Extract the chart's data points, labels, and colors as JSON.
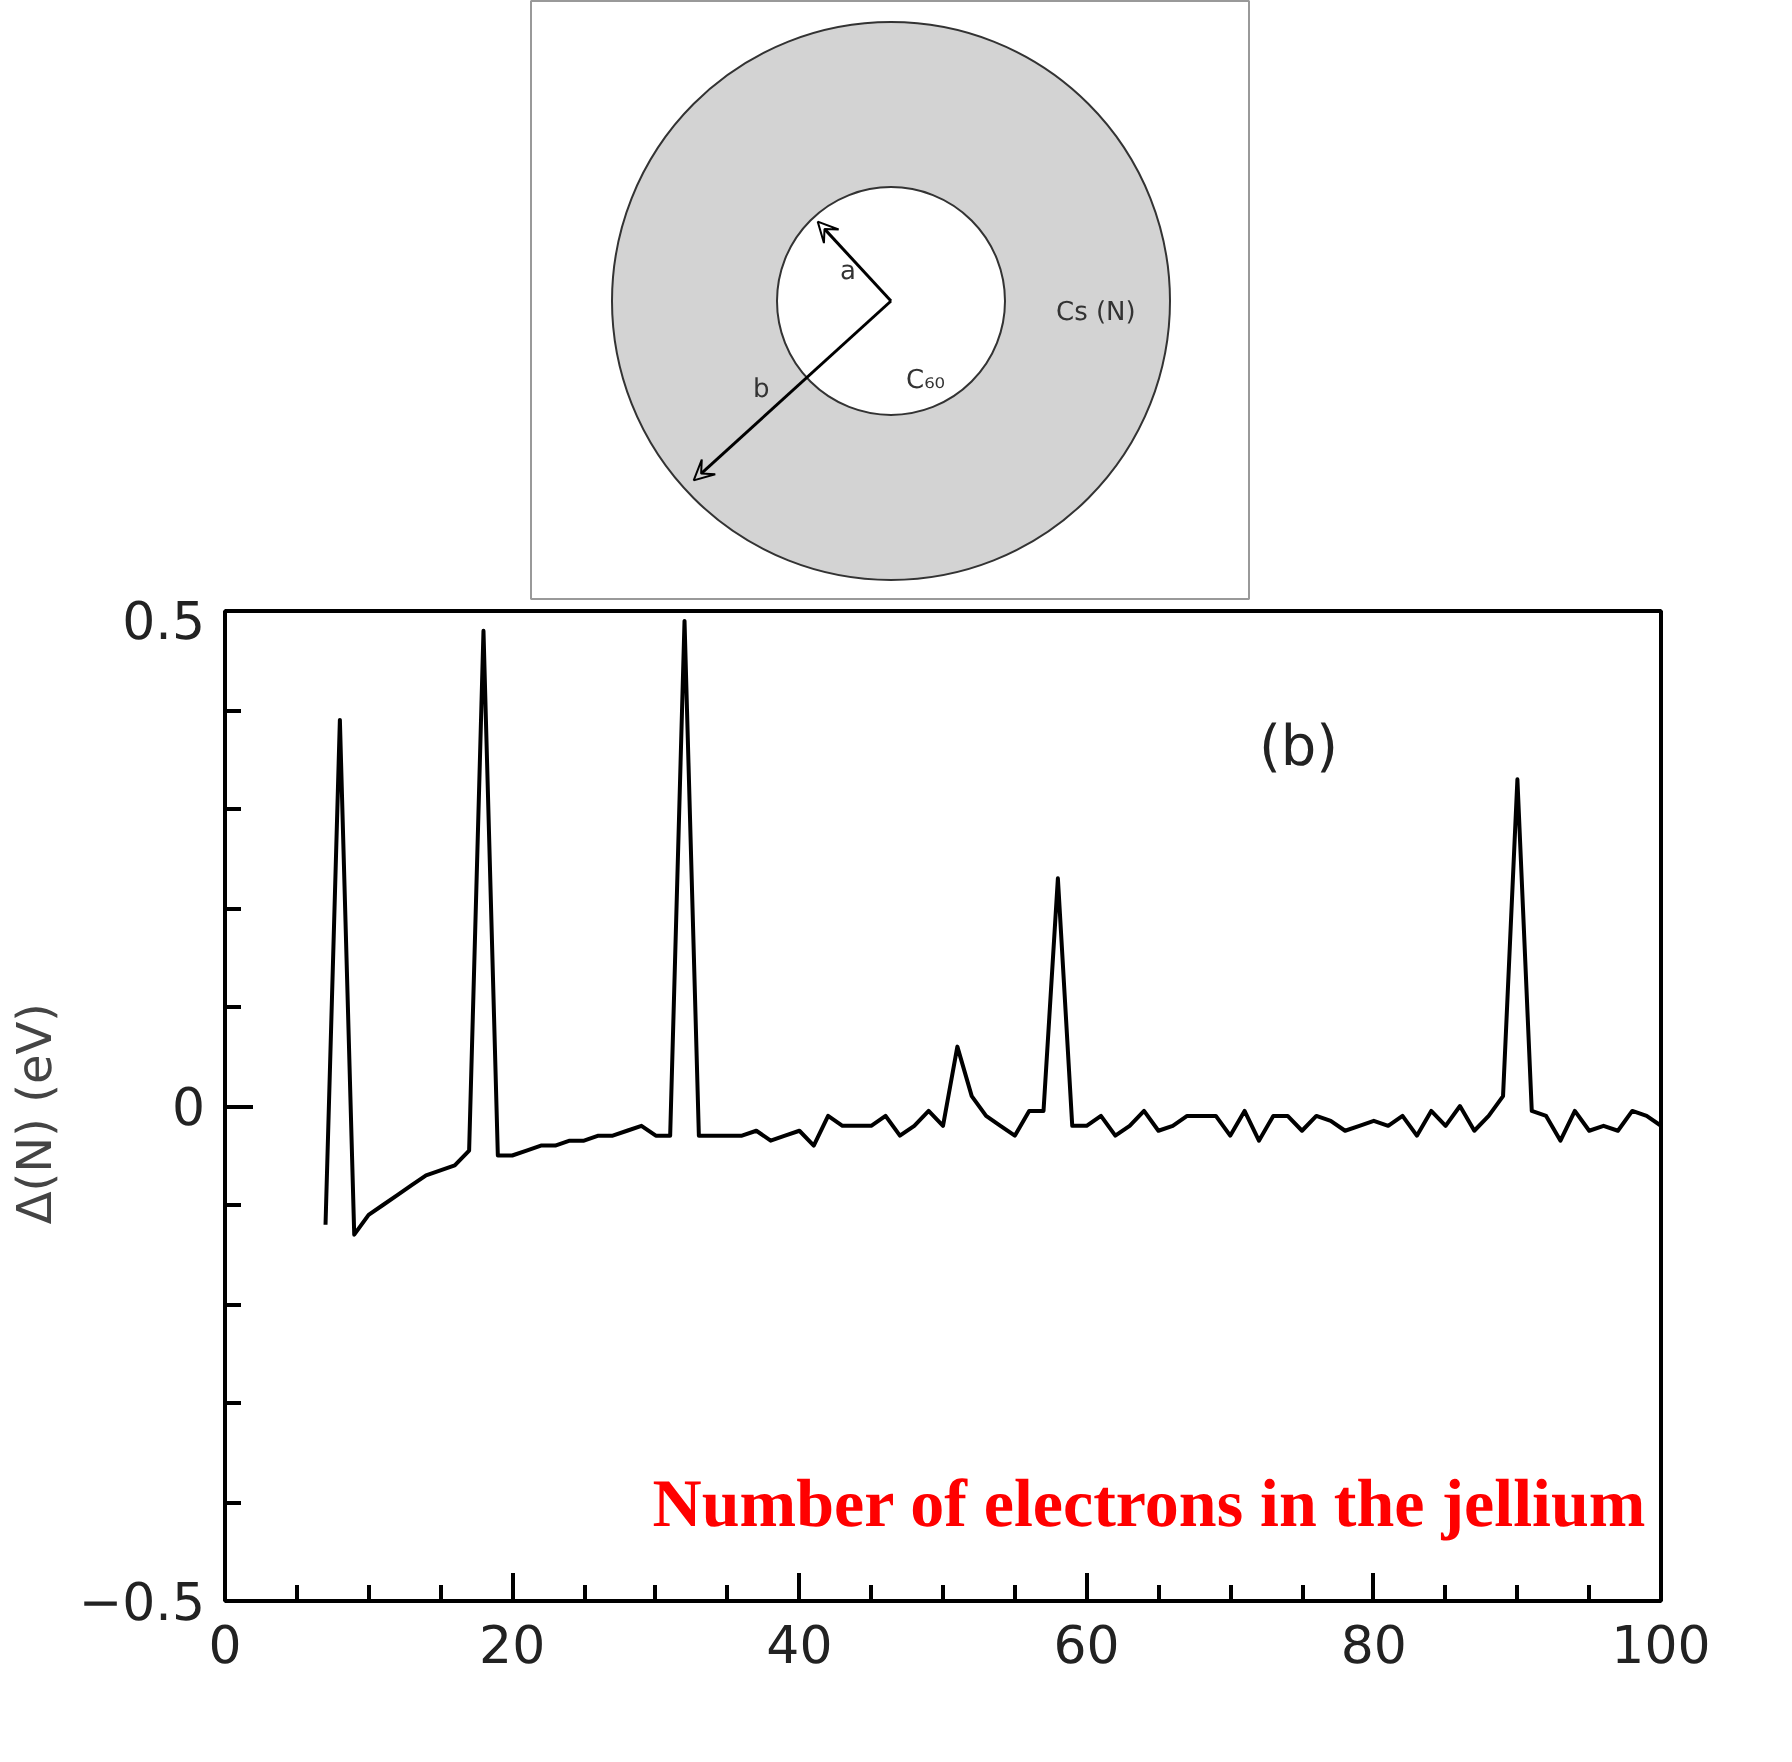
{
  "chart_data": {
    "type": "line",
    "xlabel": "Number of electrons in the jellium",
    "ylabel": "Δ(N)  (eV)",
    "annotations": [
      "(b)",
      "a",
      "b",
      "C₆₀",
      "Cs (N)"
    ],
    "x": [
      7,
      8,
      9,
      10,
      11,
      12,
      13,
      14,
      15,
      16,
      17,
      18,
      19,
      20,
      21,
      22,
      23,
      24,
      25,
      26,
      27,
      28,
      29,
      30,
      31,
      32,
      33,
      34,
      35,
      36,
      37,
      38,
      39,
      40,
      41,
      42,
      43,
      44,
      45,
      46,
      47,
      48,
      49,
      50,
      51,
      52,
      53,
      54,
      55,
      56,
      57,
      58,
      59,
      60,
      61,
      62,
      63,
      64,
      65,
      66,
      67,
      68,
      69,
      70,
      71,
      72,
      73,
      74,
      75,
      76,
      77,
      78,
      79,
      80,
      81,
      82,
      83,
      84,
      85,
      86,
      87,
      88,
      89,
      90,
      91,
      92,
      93,
      94,
      95,
      96,
      97,
      98,
      99,
      100
    ],
    "series": [
      {
        "color": "#000000",
        "values": [
          -0.12,
          0.39,
          -0.13,
          -0.11,
          -0.1,
          -0.09,
          -0.08,
          -0.07,
          -0.065,
          -0.06,
          -0.045,
          0.48,
          -0.05,
          -0.05,
          -0.045,
          -0.04,
          -0.04,
          -0.035,
          -0.035,
          -0.03,
          -0.03,
          -0.025,
          -0.02,
          -0.03,
          -0.03,
          0.49,
          -0.03,
          -0.03,
          -0.03,
          -0.03,
          -0.025,
          -0.035,
          -0.03,
          -0.025,
          -0.04,
          -0.01,
          -0.02,
          -0.02,
          -0.02,
          -0.01,
          -0.03,
          -0.02,
          -0.005,
          -0.02,
          0.06,
          0.01,
          -0.01,
          -0.02,
          -0.03,
          -0.005,
          -0.005,
          0.23,
          -0.02,
          -0.02,
          -0.01,
          -0.03,
          -0.02,
          -0.005,
          -0.025,
          -0.02,
          -0.01,
          -0.01,
          -0.01,
          -0.03,
          -0.005,
          -0.035,
          -0.01,
          -0.01,
          -0.025,
          -0.01,
          -0.015,
          -0.025,
          -0.02,
          -0.015,
          -0.02,
          -0.01,
          -0.03,
          -0.005,
          -0.02,
          0.0,
          -0.025,
          -0.01,
          0.01,
          0.33,
          -0.005,
          -0.01,
          -0.035,
          -0.005,
          -0.025,
          -0.02,
          -0.025,
          -0.005,
          -0.01,
          -0.02
        ]
      }
    ],
    "xlim": [
      0,
      100
    ],
    "ylim": [
      -0.5,
      0.5
    ],
    "xticks": [
      0,
      20,
      40,
      60,
      80,
      100
    ],
    "yticks": [
      {
        "value": -0.5,
        "label": "−0.5"
      },
      0,
      0.5
    ],
    "grid": false,
    "line_style": "solid",
    "marker": "none"
  }
}
